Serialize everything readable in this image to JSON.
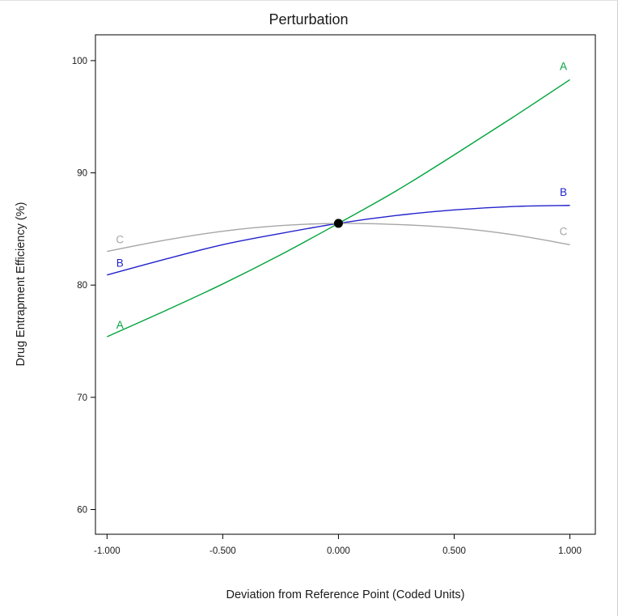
{
  "chart_data": {
    "type": "line",
    "title": "Perturbation",
    "xlabel": "Deviation from Reference Point (Coded Units)",
    "ylabel": "Drug Entrapment Efficiency (%)",
    "xlim": [
      -1.05,
      1.11
    ],
    "ylim": [
      57.8,
      102.3
    ],
    "x_ticks": [
      -1,
      -0.5,
      0,
      0.5,
      1
    ],
    "x_tick_labels": [
      "-1.000",
      "-0.500",
      "0.000",
      "0.500",
      "1.000"
    ],
    "y_ticks": [
      60,
      70,
      80,
      90,
      100
    ],
    "y_tick_labels": [
      "60",
      "70",
      "80",
      "90",
      "100"
    ],
    "grid": false,
    "legend": "curve-end letter labels",
    "x": [
      -1,
      -0.75,
      -0.5,
      -0.25,
      0,
      0.25,
      0.5,
      0.75,
      1
    ],
    "series": [
      {
        "name": "A",
        "color": "#00A33C",
        "values": [
          75.4,
          77.7,
          80.1,
          82.7,
          85.5,
          88.4,
          91.6,
          94.9,
          98.3
        ]
      },
      {
        "name": "B",
        "color": "#2222CC",
        "values": [
          80.9,
          82.3,
          83.6,
          84.6,
          85.5,
          86.2,
          86.7,
          87.0,
          87.1
        ]
      },
      {
        "name": "C",
        "color": "#A6A6A6",
        "values": [
          83.0,
          84.0,
          84.8,
          85.3,
          85.5,
          85.4,
          85.1,
          84.5,
          83.6
        ]
      }
    ],
    "reference_point": {
      "x": 0,
      "y": 85.5,
      "color": "#000000"
    }
  }
}
